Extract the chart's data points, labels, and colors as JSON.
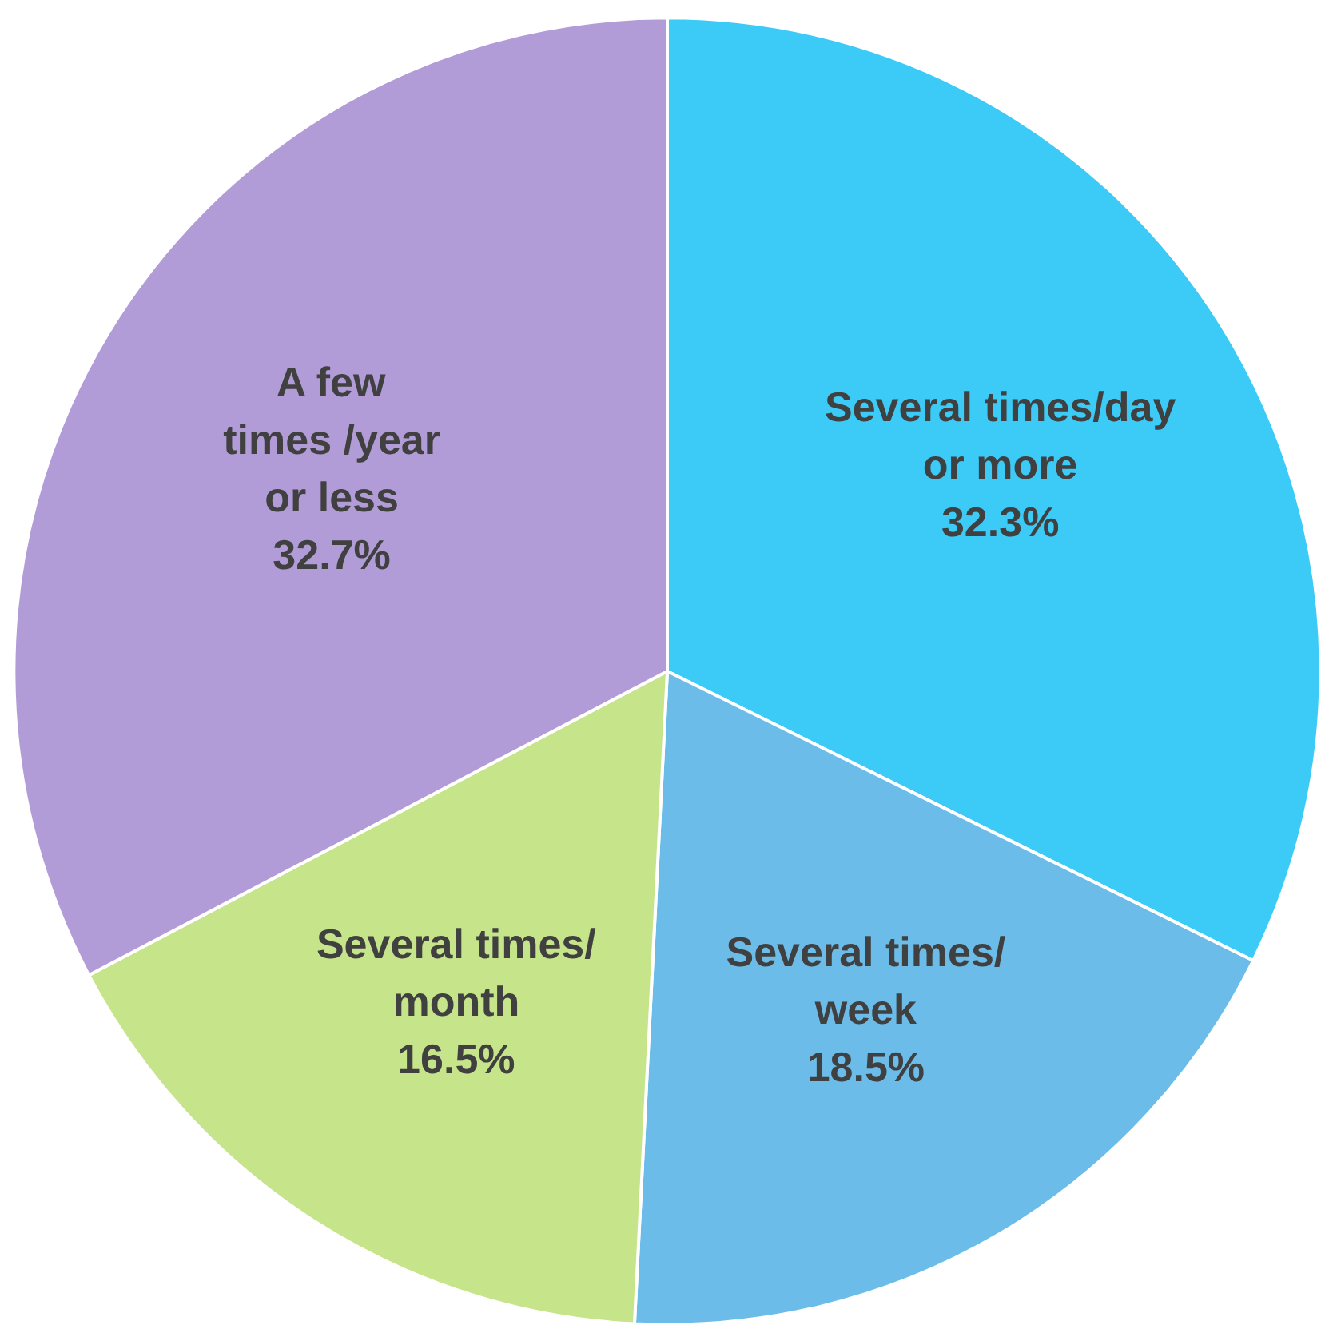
{
  "chart_data": {
    "type": "pie",
    "categories": [
      "Several times/day\nor more",
      "Several times/\nweek",
      "Several times/\nmonth",
      "A few\ntimes /year\nor less"
    ],
    "values": [
      32.3,
      18.5,
      16.5,
      32.7
    ],
    "value_labels": [
      "32.3%",
      "18.5%",
      "16.5%",
      "32.7%"
    ],
    "colors": [
      "#3ccaf6",
      "#6cbce9",
      "#c6e48a",
      "#b29cd8"
    ]
  }
}
